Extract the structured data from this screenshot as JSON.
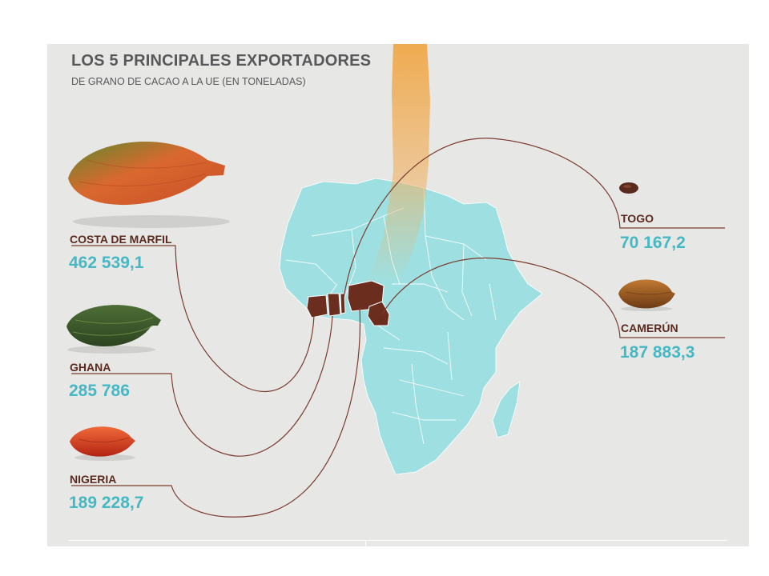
{
  "header": {
    "title": "LOS 5 PRINCIPALES EXPORTADORES",
    "subtitle": "DE GRANO DE CACAO A LA UE (EN TONELADAS)"
  },
  "exporters": [
    {
      "name": "COSTA DE MARFIL",
      "value": "462 539,1",
      "pod_color": "#d9682f"
    },
    {
      "name": "GHANA",
      "value": "285 786",
      "pod_color": "#3d5a2c"
    },
    {
      "name": "NIGERIA",
      "value": "189 228,7",
      "pod_color": "#d83a22"
    },
    {
      "name": "TOGO",
      "value": "70 167,2",
      "pod_color": "#5a2a1e"
    },
    {
      "name": "CAMERÚN",
      "value": "187 883,3",
      "pod_color": "#8a4a1a"
    }
  ],
  "colors": {
    "map": "#9ee0e2",
    "highlight": "#6b2d1d",
    "leader_line": "#7a3b2e",
    "value_text": "#45b8c4",
    "beam": "#f0a848"
  }
}
